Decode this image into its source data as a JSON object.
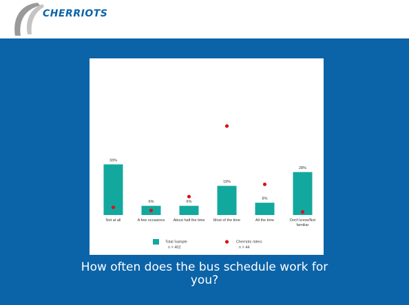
{
  "slide": {
    "logo": "CHERRIOTS",
    "caption": "How often does the bus schedule work for you?"
  },
  "chart_data": {
    "type": "bar",
    "categories": [
      "Not at all",
      "A few occasions",
      "About half the time",
      "Most of the time",
      "All the time",
      "Don't know/Not familiar"
    ],
    "series": [
      {
        "name": "Total Sample",
        "note": "n = 402",
        "color": "#13a89e",
        "values": [
          33,
          6,
          6,
          19,
          8,
          28
        ],
        "value_labels": [
          "33%",
          "6%",
          "6%",
          "19%",
          "8%",
          "28%"
        ]
      },
      {
        "name": "Cherriots riders",
        "note": "n = 44",
        "color": "#d7141a",
        "values": [
          5,
          3,
          12,
          58,
          20,
          2
        ]
      }
    ],
    "ylim": [
      0,
      60
    ],
    "legend": "bottom"
  }
}
